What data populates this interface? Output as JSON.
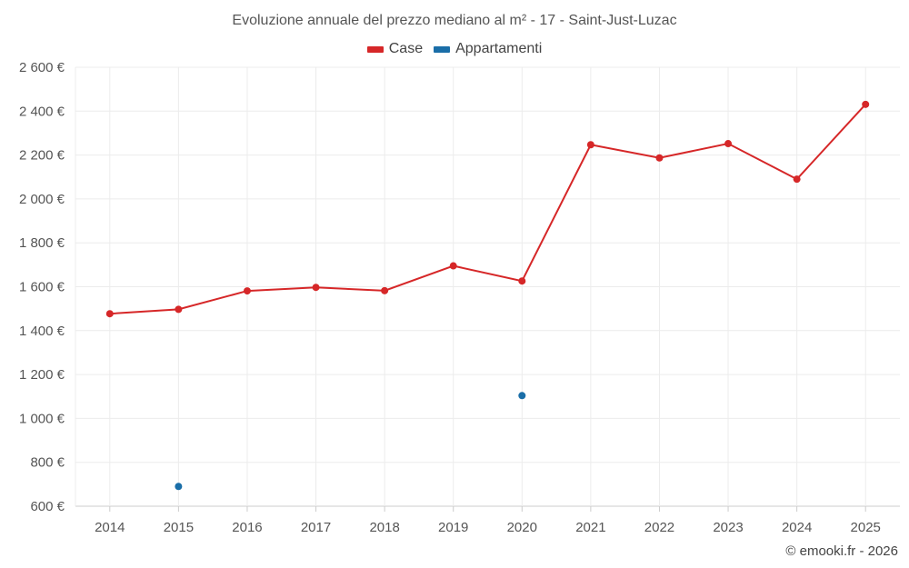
{
  "chart_data": {
    "type": "line",
    "title": "Evoluzione annuale del prezzo mediano al m² - 17 - Saint-Just-Luzac",
    "categories": [
      "2014",
      "2015",
      "2016",
      "2017",
      "2018",
      "2019",
      "2020",
      "2021",
      "2022",
      "2023",
      "2024",
      "2025"
    ],
    "series": [
      {
        "name": "Case",
        "color": "#d62728",
        "values": [
          1477,
          1497,
          1581,
          1597,
          1582,
          1695,
          1626,
          2247,
          2187,
          2252,
          2090,
          2431
        ]
      },
      {
        "name": "Appartamenti",
        "color": "#1f77b4",
        "values": [
          null,
          690,
          null,
          null,
          null,
          null,
          1104,
          null,
          null,
          null,
          null,
          null
        ]
      }
    ],
    "ylim": [
      600,
      2600
    ],
    "yticks": [
      600,
      800,
      1000,
      1200,
      1400,
      1600,
      1800,
      2000,
      2200,
      2400,
      2600
    ],
    "ytick_labels": [
      "600 €",
      "800 €",
      "1 000 €",
      "1 200 €",
      "1 400 €",
      "1 600 €",
      "1 800 €",
      "2 000 €",
      "2 200 €",
      "2 400 €",
      "2 600 €"
    ],
    "grid": true,
    "legend_position": "top-center"
  },
  "footer": "© emooki.fr - 2026"
}
